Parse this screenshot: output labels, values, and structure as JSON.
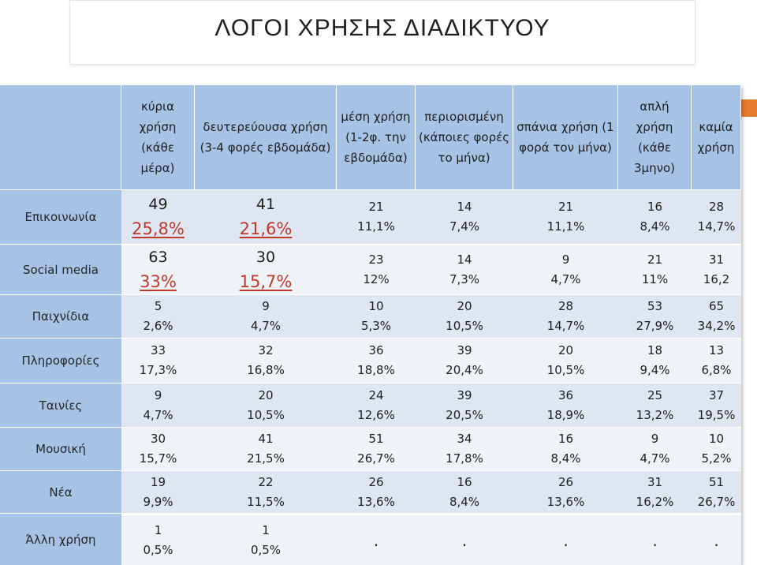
{
  "title": "ΛΟΓΟΙ ΧΡΗΣΗΣ ΔΙΑΔΙΚΤΥΟΥ",
  "columns": [
    "κύρια χρήση (κάθε μέρα)",
    "δευτερεύουσα χρήση (3-4 φορές εβδομάδα)",
    "μέση χρήση (1-2φ. την εβδομάδα)",
    "περιορισμένη (κάποιες φορές το μήνα)",
    "σπάνια χρήση (1 φορά τον μήνα)",
    "απλή χρήση (κάθε 3μηνο)",
    "καμία χρήση"
  ],
  "rows": [
    {
      "label": "Επικοινωνία",
      "cells": [
        {
          "count": "49",
          "pct": "25,8%"
        },
        {
          "count": "41",
          "pct": "21,6%"
        },
        {
          "count": "21",
          "pct": "11,1%"
        },
        {
          "count": "14",
          "pct": "7,4%"
        },
        {
          "count": "21",
          "pct": "11,1%"
        },
        {
          "count": "16",
          "pct": "8,4%"
        },
        {
          "count": "28",
          "pct": "14,7%"
        }
      ]
    },
    {
      "label": "Social media",
      "cells": [
        {
          "count": "63",
          "pct": "33%"
        },
        {
          "count": "30",
          "pct": "15,7%"
        },
        {
          "count": "23",
          "pct": "12%"
        },
        {
          "count": "14",
          "pct": "7,3%"
        },
        {
          "count": "9",
          "pct": "4,7%"
        },
        {
          "count": "21",
          "pct": "11%"
        },
        {
          "count": "31",
          "pct": "16,2"
        }
      ]
    },
    {
      "label": "Παιχνίδια",
      "cells": [
        {
          "count": "5",
          "pct": "2,6%"
        },
        {
          "count": "9",
          "pct": "4,7%"
        },
        {
          "count": "10",
          "pct": "5,3%"
        },
        {
          "count": "20",
          "pct": "10,5%"
        },
        {
          "count": "28",
          "pct": "14,7%"
        },
        {
          "count": "53",
          "pct": "27,9%"
        },
        {
          "count": "65",
          "pct": "34,2%"
        }
      ]
    },
    {
      "label": "Πληροφορίες",
      "cells": [
        {
          "count": "33",
          "pct": "17,3%"
        },
        {
          "count": "32",
          "pct": "16,8%"
        },
        {
          "count": "36",
          "pct": "18,8%"
        },
        {
          "count": "39",
          "pct": "20,4%"
        },
        {
          "count": "20",
          "pct": "10,5%"
        },
        {
          "count": "18",
          "pct": "9,4%"
        },
        {
          "count": "13",
          "pct": "6,8%"
        }
      ]
    },
    {
      "label": "Ταινίες",
      "cells": [
        {
          "count": "9",
          "pct": "4,7%"
        },
        {
          "count": "20",
          "pct": "10,5%"
        },
        {
          "count": "24",
          "pct": "12,6%"
        },
        {
          "count": "39",
          "pct": "20,5%"
        },
        {
          "count": "36",
          "pct": "18,9%"
        },
        {
          "count": "25",
          "pct": "13,2%"
        },
        {
          "count": "37",
          "pct": "19,5%"
        }
      ]
    },
    {
      "label": "Μουσική",
      "cells": [
        {
          "count": "30",
          "pct": "15,7%"
        },
        {
          "count": "41",
          "pct": "21,5%"
        },
        {
          "count": "51",
          "pct": "26,7%"
        },
        {
          "count": "34",
          "pct": "17,8%"
        },
        {
          "count": "16",
          "pct": "8,4%"
        },
        {
          "count": "9",
          "pct": "4,7%"
        },
        {
          "count": "10",
          "pct": "5,2%"
        }
      ]
    },
    {
      "label": "Νέα",
      "cells": [
        {
          "count": "19",
          "pct": "9,9%"
        },
        {
          "count": "22",
          "pct": "11,5%"
        },
        {
          "count": "26",
          "pct": "13,6%"
        },
        {
          "count": "16",
          "pct": "8,4%"
        },
        {
          "count": "26",
          "pct": "13,6%"
        },
        {
          "count": "31",
          "pct": "16,2%"
        },
        {
          "count": "51",
          "pct": "26,7%"
        }
      ]
    },
    {
      "label": "Άλλη χρήση",
      "cells": [
        {
          "count": "1",
          "pct": "0,5%"
        },
        {
          "count": "1",
          "pct": "0,5%"
        },
        {
          "count": ".",
          "pct": ""
        },
        {
          "count": ".",
          "pct": ""
        },
        {
          "count": ".",
          "pct": ""
        },
        {
          "count": ".",
          "pct": ""
        },
        {
          "count": ".",
          "pct": ""
        }
      ]
    }
  ],
  "colors": {
    "header_bg": "#a6c3e5",
    "row_odd": "#dee6f1",
    "row_even": "#eff3f8",
    "highlight_text": "#c0392b",
    "accent": "#e87a2c"
  }
}
